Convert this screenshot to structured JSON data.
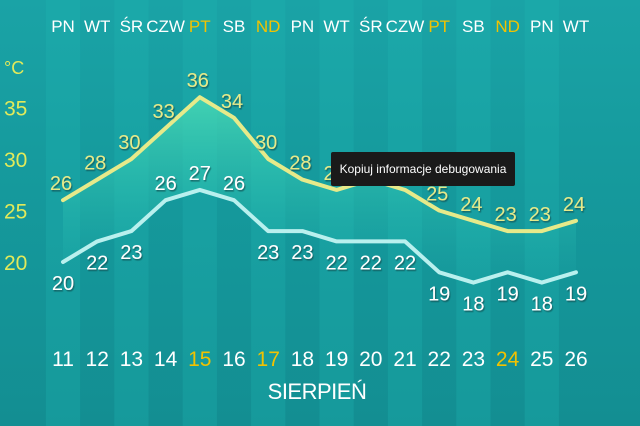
{
  "chart_data": {
    "type": "line",
    "ylabel": "°C",
    "ylim": [
      17,
      37
    ],
    "y_ticks": [
      35,
      30,
      25,
      20
    ],
    "weekdays": [
      "PN",
      "WT",
      "ŚR",
      "CZW",
      "PT",
      "SB",
      "ND",
      "PN",
      "WT",
      "ŚR",
      "CZW",
      "PT",
      "SB",
      "ND",
      "PN",
      "WT"
    ],
    "categories": [
      "11",
      "12",
      "13",
      "14",
      "15",
      "16",
      "17",
      "18",
      "19",
      "20",
      "21",
      "22",
      "23",
      "24",
      "25",
      "26"
    ],
    "highlight_days": [
      "PT",
      "ND"
    ],
    "highlight_dates": [
      "15",
      "17",
      "24"
    ],
    "xlabel": "SIERPIEŃ",
    "series": [
      {
        "values": [
          26,
          28,
          30,
          33,
          36,
          34,
          30,
          28,
          27,
          28,
          27,
          25,
          24,
          23,
          23,
          24
        ],
        "color": "#e6ea8a",
        "labels": [
          "26",
          "28",
          "30",
          "33",
          "36",
          "34",
          "30",
          "28",
          "27",
          "28",
          "27",
          "25",
          "24",
          "23",
          "23",
          "24"
        ]
      },
      {
        "values": [
          20,
          22,
          23,
          26,
          27,
          26,
          23,
          23,
          22,
          22,
          22,
          19,
          18,
          19,
          18,
          19
        ],
        "color": "#b9f0ee",
        "labels": [
          "20",
          "22",
          "23",
          "26",
          "27",
          "26",
          "23",
          "23",
          "22",
          "22",
          "22",
          "19",
          "18",
          "19",
          "18",
          "19"
        ]
      }
    ]
  },
  "colors": {
    "highlight": "#f2c200",
    "text": "#ffffff",
    "y_tick": "#e2ea5a",
    "band": "#20b8b4"
  },
  "tooltip": {
    "text": "Kopiuj informacje debugowania"
  }
}
